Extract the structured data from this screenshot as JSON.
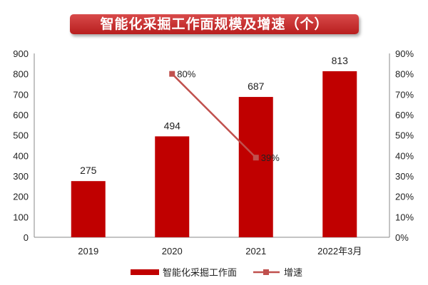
{
  "chart_data": {
    "type": "bar",
    "title": "智能化采掘工作面规模及增速（个）",
    "categories": [
      "2019",
      "2020",
      "2021",
      "2022年3月"
    ],
    "series": [
      {
        "name": "智能化采掘工作面",
        "type": "bar",
        "axis": "left",
        "values": [
          275,
          494,
          687,
          813
        ],
        "labels": [
          "275",
          "494",
          "687",
          "813"
        ],
        "color": "#C00000"
      },
      {
        "name": "增速",
        "type": "line",
        "axis": "right",
        "values": [
          null,
          80,
          39,
          null
        ],
        "labels": [
          "",
          "80%",
          "39%",
          ""
        ],
        "color": "#C0504D"
      }
    ],
    "ylim": [
      0,
      900
    ],
    "yticks": [
      "0",
      "100",
      "200",
      "300",
      "400",
      "500",
      "600",
      "700",
      "800",
      "900"
    ],
    "y2lim": [
      0,
      90
    ],
    "y2ticks": [
      "0%",
      "10%",
      "20%",
      "30%",
      "40%",
      "50%",
      "60%",
      "70%",
      "80%",
      "90%"
    ],
    "grid": false,
    "legend": "bottom"
  }
}
